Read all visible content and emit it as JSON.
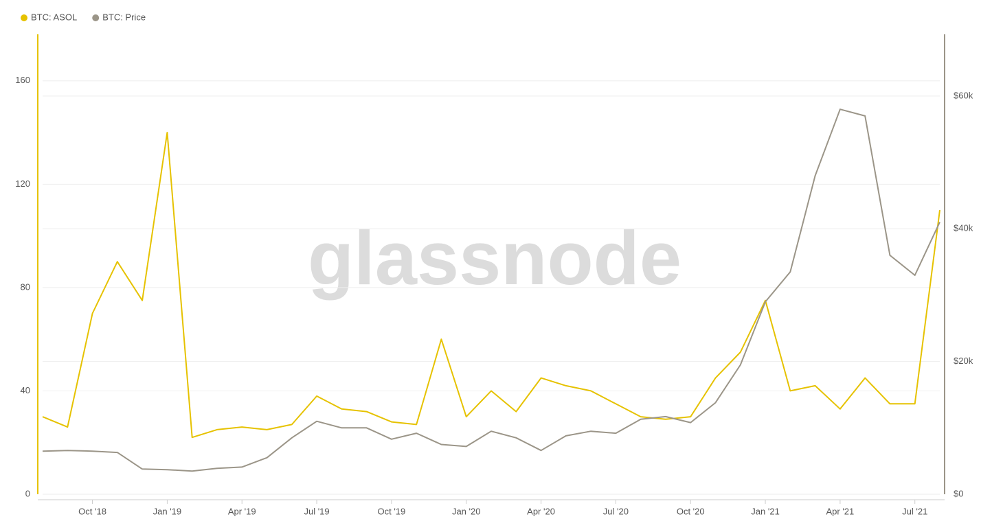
{
  "chart_data": {
    "type": "line",
    "watermark": "glassnode",
    "x": [
      "2018-08",
      "2018-09",
      "2018-10",
      "2018-11",
      "2018-12",
      "2019-01",
      "2019-02",
      "2019-03",
      "2019-04",
      "2019-05",
      "2019-06",
      "2019-07",
      "2019-08",
      "2019-09",
      "2019-10",
      "2019-11",
      "2019-12",
      "2020-01",
      "2020-02",
      "2020-03",
      "2020-04",
      "2020-05",
      "2020-06",
      "2020-07",
      "2020-08",
      "2020-09",
      "2020-10",
      "2020-11",
      "2020-12",
      "2021-01",
      "2021-02",
      "2021-03",
      "2021-04",
      "2021-05",
      "2021-06",
      "2021-07",
      "2021-08"
    ],
    "xlim": [
      "2018-08",
      "2021-08"
    ],
    "xticks": [
      {
        "value": "2018-10",
        "label": "Oct '18"
      },
      {
        "value": "2019-01",
        "label": "Jan '19"
      },
      {
        "value": "2019-04",
        "label": "Apr '19"
      },
      {
        "value": "2019-07",
        "label": "Jul '19"
      },
      {
        "value": "2019-10",
        "label": "Oct '19"
      },
      {
        "value": "2020-01",
        "label": "Jan '20"
      },
      {
        "value": "2020-04",
        "label": "Apr '20"
      },
      {
        "value": "2020-07",
        "label": "Jul '20"
      },
      {
        "value": "2020-10",
        "label": "Oct '20"
      },
      {
        "value": "2021-01",
        "label": "Jan '21"
      },
      {
        "value": "2021-04",
        "label": "Apr '21"
      },
      {
        "value": "2021-07",
        "label": "Jul '21"
      }
    ],
    "ylim": [
      0,
      178
    ],
    "yticks": [
      0,
      40,
      80,
      120,
      160
    ],
    "y2lim": [
      0,
      69300
    ],
    "y2ticks": [
      {
        "value": 0,
        "label": "$0"
      },
      {
        "value": 20000,
        "label": "$20k"
      },
      {
        "value": 40000,
        "label": "$40k"
      },
      {
        "value": 60000,
        "label": "$60k"
      }
    ],
    "grid": true,
    "series": [
      {
        "name": "BTC: ASOL",
        "color": "#e6c200",
        "values": [
          30,
          26,
          70,
          90,
          75,
          140,
          22,
          25,
          26,
          25,
          27,
          38,
          33,
          32,
          28,
          27,
          60,
          30,
          40,
          32,
          45,
          42,
          40,
          35,
          30,
          29,
          30,
          45,
          55,
          75,
          40,
          42,
          33,
          45,
          35,
          35,
          110
        ]
      },
      {
        "name": "BTC: Price",
        "color": "#9b9588",
        "axis": "y2",
        "values": [
          6500,
          6600,
          6500,
          6300,
          3800,
          3700,
          3500,
          3900,
          4100,
          5500,
          8500,
          11000,
          10000,
          10000,
          8300,
          9200,
          7500,
          7200,
          9500,
          8500,
          6600,
          8800,
          9500,
          9200,
          11300,
          11700,
          10800,
          13800,
          19500,
          29000,
          33500,
          48000,
          58000,
          57000,
          36000,
          33000,
          41000
        ]
      }
    ]
  }
}
